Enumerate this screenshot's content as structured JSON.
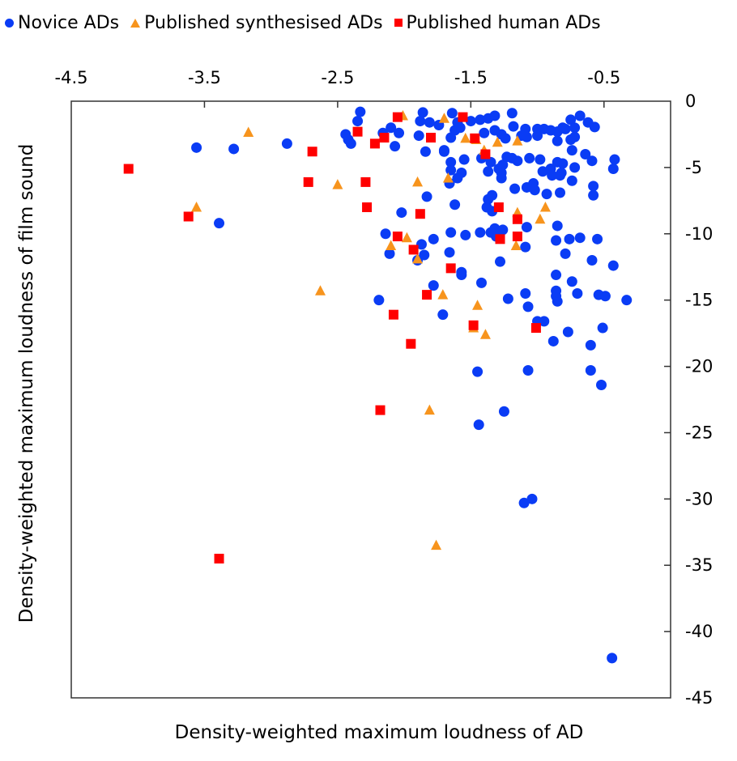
{
  "chart_data": {
    "type": "scatter",
    "title": "",
    "xlabel": "Density-weighted maximum loudness of AD",
    "ylabel": "Density-weighted maximum loudness of film sound",
    "xlim": [
      -4.5,
      0
    ],
    "ylim": [
      -45,
      0
    ],
    "x_ticks": [
      -4.5,
      -3.5,
      -2.5,
      -1.5,
      -0.5
    ],
    "x_tick_labels": [
      "-4.5",
      "-3.5",
      "-2.5",
      "-1.5",
      "-0.5"
    ],
    "y_ticks": [
      0,
      -5,
      -10,
      -15,
      -20,
      -25,
      -30,
      -35,
      -40,
      -45
    ],
    "y_tick_labels": [
      "0",
      "-5",
      "-10",
      "-15",
      "-20",
      "-25",
      "-30",
      "-35",
      "-40",
      "-45"
    ],
    "x_axis_position": "top",
    "y_axis_position": "right",
    "grid": false,
    "legend_position": "top-left",
    "series": [
      {
        "name": "Novice ADs",
        "marker": "circle",
        "color": "#0A3CF5",
        "points": [
          [
            -3.56,
            -3.5
          ],
          [
            -3.28,
            -3.6
          ],
          [
            -2.88,
            -3.2
          ],
          [
            -3.39,
            -9.2
          ],
          [
            -2.33,
            -0.8
          ],
          [
            -2.35,
            -1.5
          ],
          [
            -2.44,
            -2.5
          ],
          [
            -2.42,
            -2.9
          ],
          [
            -2.4,
            -3.2
          ],
          [
            -2.16,
            -2.4
          ],
          [
            -2.1,
            -2.0
          ],
          [
            -2.04,
            -2.4
          ],
          [
            -2.07,
            -3.4
          ],
          [
            -1.89,
            -2.6
          ],
          [
            -1.86,
            -0.85
          ],
          [
            -1.88,
            -1.5
          ],
          [
            -1.81,
            -1.6
          ],
          [
            -1.74,
            -1.8
          ],
          [
            -1.64,
            -0.9
          ],
          [
            -1.84,
            -3.8
          ],
          [
            -1.7,
            -3.8
          ],
          [
            -1.65,
            -2.75
          ],
          [
            -1.62,
            -2.2
          ],
          [
            -1.6,
            -1.6
          ],
          [
            -1.5,
            -1.5
          ],
          [
            -1.58,
            -2.0
          ],
          [
            -1.43,
            -1.4
          ],
          [
            -1.37,
            -1.3
          ],
          [
            -1.32,
            -1.1
          ],
          [
            -1.19,
            -0.9
          ],
          [
            -1.18,
            -1.9
          ],
          [
            -1.09,
            -2.1
          ],
          [
            -1.12,
            -2.6
          ],
          [
            -1.4,
            -2.4
          ],
          [
            -1.32,
            -2.2
          ],
          [
            -1.27,
            -2.5
          ],
          [
            -1.24,
            -2.8
          ],
          [
            -1.0,
            -2.1
          ],
          [
            -0.95,
            -2.1
          ],
          [
            -0.9,
            -2.2
          ],
          [
            -0.85,
            -2.3
          ],
          [
            -0.79,
            -2.1
          ],
          [
            -0.75,
            -1.4
          ],
          [
            -0.68,
            -1.1
          ],
          [
            -0.72,
            -2.0
          ],
          [
            -0.62,
            -1.6
          ],
          [
            -0.57,
            -1.95
          ],
          [
            -0.81,
            -2.0
          ],
          [
            -0.85,
            -3.0
          ],
          [
            -0.75,
            -2.9
          ],
          [
            -0.72,
            -2.7
          ],
          [
            -1.08,
            -2.7
          ],
          [
            -1.0,
            -2.6
          ],
          [
            -0.74,
            -3.7
          ],
          [
            -0.64,
            -4.0
          ],
          [
            -0.59,
            -4.5
          ],
          [
            -0.42,
            -4.4
          ],
          [
            -0.43,
            -5.1
          ],
          [
            -0.81,
            -4.7
          ],
          [
            -0.72,
            -5.0
          ],
          [
            -0.74,
            -6.0
          ],
          [
            -0.58,
            -6.4
          ],
          [
            -0.58,
            -7.1
          ],
          [
            -0.83,
            -6.9
          ],
          [
            -0.82,
            -5.4
          ],
          [
            -1.7,
            -3.7
          ],
          [
            -1.65,
            -4.6
          ],
          [
            -1.65,
            -5.2
          ],
          [
            -1.55,
            -4.4
          ],
          [
            -1.57,
            -5.4
          ],
          [
            -1.6,
            -5.8
          ],
          [
            -1.66,
            -6.2
          ],
          [
            -1.62,
            -7.8
          ],
          [
            -1.42,
            -4.3
          ],
          [
            -1.35,
            -4.6
          ],
          [
            -1.37,
            -5.3
          ],
          [
            -1.29,
            -5.1
          ],
          [
            -1.26,
            -4.8
          ],
          [
            -1.27,
            -5.4
          ],
          [
            -1.27,
            -5.8
          ],
          [
            -1.23,
            -4.2
          ],
          [
            -1.19,
            -4.3
          ],
          [
            -1.15,
            -4.5
          ],
          [
            -1.06,
            -4.3
          ],
          [
            -0.98,
            -4.4
          ],
          [
            -0.96,
            -5.3
          ],
          [
            -0.89,
            -5.6
          ],
          [
            -0.9,
            -5.1
          ],
          [
            -0.85,
            -4.6
          ],
          [
            -0.83,
            -5.6
          ],
          [
            -1.17,
            -6.6
          ],
          [
            -1.08,
            -6.5
          ],
          [
            -1.03,
            -6.2
          ],
          [
            -1.02,
            -6.7
          ],
          [
            -1.37,
            -7.4
          ],
          [
            -1.34,
            -7.1
          ],
          [
            -0.93,
            -7.0
          ],
          [
            -1.38,
            -8.0
          ],
          [
            -1.34,
            -8.3
          ],
          [
            -1.54,
            -10.1
          ],
          [
            -1.32,
            -9.6
          ],
          [
            -1.31,
            -10.2
          ],
          [
            -1.26,
            -9.7
          ],
          [
            -1.08,
            -9.5
          ],
          [
            -0.85,
            -9.4
          ],
          [
            -0.86,
            -10.5
          ],
          [
            -0.76,
            -10.4
          ],
          [
            -0.68,
            -10.3
          ],
          [
            -0.55,
            -10.4
          ],
          [
            -0.79,
            -11.5
          ],
          [
            -1.09,
            -11.0
          ],
          [
            -1.28,
            -12.1
          ],
          [
            -0.59,
            -12.0
          ],
          [
            -0.43,
            -12.4
          ],
          [
            -1.57,
            -13.1
          ],
          [
            -1.42,
            -13.7
          ],
          [
            -0.86,
            -13.1
          ],
          [
            -0.74,
            -13.6
          ],
          [
            -0.86,
            -14.3
          ],
          [
            -0.86,
            -14.7
          ],
          [
            -0.85,
            -15.1
          ],
          [
            -0.7,
            -14.5
          ],
          [
            -0.54,
            -14.6
          ],
          [
            -0.49,
            -14.7
          ],
          [
            -0.33,
            -15.0
          ],
          [
            -1.22,
            -14.9
          ],
          [
            -1.09,
            -14.5
          ],
          [
            -1.07,
            -15.5
          ],
          [
            -2.14,
            -10.0
          ],
          [
            -2.11,
            -11.5
          ],
          [
            -1.87,
            -10.8
          ],
          [
            -1.9,
            -12.0
          ],
          [
            -1.85,
            -11.6
          ],
          [
            -1.78,
            -10.4
          ],
          [
            -1.65,
            -9.9
          ],
          [
            -1.66,
            -11.4
          ],
          [
            -1.57,
            -12.9
          ],
          [
            -1.43,
            -9.9
          ],
          [
            -1.35,
            -9.9
          ],
          [
            -1.78,
            -13.9
          ],
          [
            -2.02,
            -8.4
          ],
          [
            -1.83,
            -7.2
          ],
          [
            -2.19,
            -15.0
          ],
          [
            -1.71,
            -16.1
          ],
          [
            -1.0,
            -16.6
          ],
          [
            -0.95,
            -16.6
          ],
          [
            -0.77,
            -17.4
          ],
          [
            -0.88,
            -18.1
          ],
          [
            -0.6,
            -18.4
          ],
          [
            -0.51,
            -17.1
          ],
          [
            -1.45,
            -20.4
          ],
          [
            -1.07,
            -20.3
          ],
          [
            -0.6,
            -20.3
          ],
          [
            -0.52,
            -21.4
          ],
          [
            -1.25,
            -23.4
          ],
          [
            -1.44,
            -24.4
          ],
          [
            -1.1,
            -30.3
          ],
          [
            -1.04,
            -30.0
          ],
          [
            -0.44,
            -42.0
          ]
        ]
      },
      {
        "name": "Published synthesised ADs",
        "marker": "triangle",
        "color": "#F7941D",
        "points": [
          [
            -3.17,
            -2.35
          ],
          [
            -3.56,
            -8.0
          ],
          [
            -2.63,
            -14.3
          ],
          [
            -2.5,
            -6.3
          ],
          [
            -2.01,
            -1.1
          ],
          [
            -1.7,
            -1.3
          ],
          [
            -1.9,
            -6.1
          ],
          [
            -1.67,
            -5.8
          ],
          [
            -2.1,
            -10.9
          ],
          [
            -1.98,
            -10.3
          ],
          [
            -1.9,
            -11.9
          ],
          [
            -1.71,
            -14.6
          ],
          [
            -1.54,
            -2.8
          ],
          [
            -1.46,
            -2.9
          ],
          [
            -1.3,
            -3.1
          ],
          [
            -1.15,
            -3.0
          ],
          [
            -1.4,
            -3.7
          ],
          [
            -1.15,
            -8.4
          ],
          [
            -0.94,
            -8.0
          ],
          [
            -0.98,
            -8.9
          ],
          [
            -1.16,
            -10.9
          ],
          [
            -1.45,
            -15.4
          ],
          [
            -1.48,
            -17.1
          ],
          [
            -1.39,
            -17.6
          ],
          [
            -1.81,
            -23.3
          ],
          [
            -1.76,
            -33.5
          ]
        ]
      },
      {
        "name": "Published human ADs",
        "marker": "square",
        "color": "#FF0000",
        "points": [
          [
            -4.07,
            -5.1
          ],
          [
            -3.62,
            -8.7
          ],
          [
            -2.72,
            -6.1
          ],
          [
            -2.69,
            -3.8
          ],
          [
            -2.35,
            -2.3
          ],
          [
            -2.29,
            -6.1
          ],
          [
            -2.28,
            -8.0
          ],
          [
            -2.22,
            -3.2
          ],
          [
            -2.15,
            -2.75
          ],
          [
            -2.05,
            -1.2
          ],
          [
            -2.05,
            -10.2
          ],
          [
            -1.93,
            -11.2
          ],
          [
            -1.88,
            -8.5
          ],
          [
            -1.8,
            -2.75
          ],
          [
            -1.83,
            -14.6
          ],
          [
            -1.65,
            -12.6
          ],
          [
            -1.56,
            -1.2
          ],
          [
            -1.47,
            -2.8
          ],
          [
            -1.39,
            -4.0
          ],
          [
            -1.29,
            -8.0
          ],
          [
            -1.28,
            -10.4
          ],
          [
            -1.15,
            -8.9
          ],
          [
            -1.15,
            -10.2
          ],
          [
            -1.48,
            -16.9
          ],
          [
            -1.01,
            -17.1
          ],
          [
            -2.08,
            -16.1
          ],
          [
            -1.95,
            -18.3
          ],
          [
            -2.18,
            -23.3
          ],
          [
            -3.39,
            -34.5
          ]
        ]
      }
    ]
  }
}
